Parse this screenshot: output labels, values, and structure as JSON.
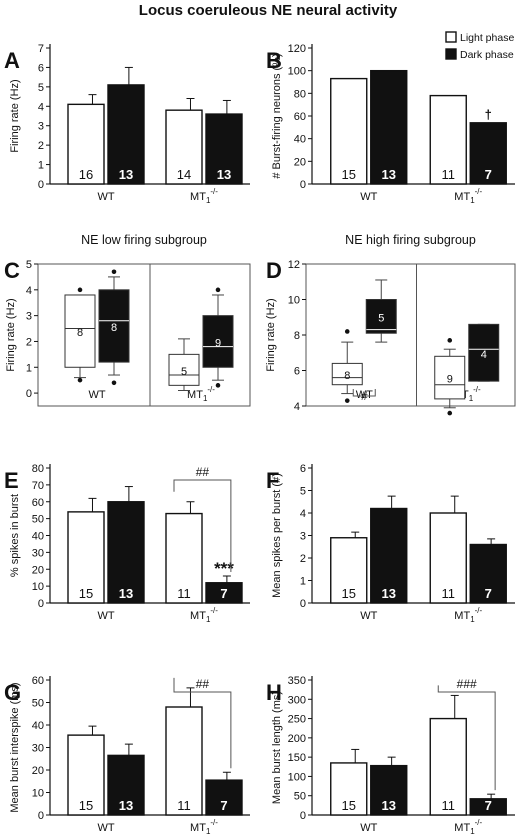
{
  "title": "Locus coeruleous NE neural activity",
  "legend": {
    "items": [
      {
        "label": "Light phase",
        "fill": "#ffffff"
      },
      {
        "label": "Dark phase",
        "fill": "#111111"
      }
    ]
  },
  "colors": {
    "light": "#ffffff",
    "dark": "#111111",
    "stroke": "#111111"
  },
  "chart_data": [
    {
      "panel": "A",
      "type": "bar",
      "ylabel": "Firing rate (Hz)",
      "ylim": [
        0,
        7
      ],
      "yticks": [
        0,
        1,
        2,
        3,
        4,
        5,
        6,
        7
      ],
      "groups": [
        {
          "label": "WT",
          "sup": "",
          "bars": [
            {
              "phase": "light",
              "value": 4.1,
              "err": 0.5,
              "n": "16"
            },
            {
              "phase": "dark",
              "value": 5.1,
              "err": 0.9,
              "n": "13"
            }
          ]
        },
        {
          "label": "MT",
          "sup": "-/-",
          "bars": [
            {
              "phase": "light",
              "value": 3.8,
              "err": 0.6,
              "n": "14"
            },
            {
              "phase": "dark",
              "value": 3.6,
              "err": 0.7,
              "n": "13"
            }
          ]
        }
      ]
    },
    {
      "panel": "B",
      "type": "bar",
      "ylabel": "# Burst-firing neurons (%)",
      "ylim": [
        0,
        120
      ],
      "yticks": [
        0,
        20,
        40,
        60,
        80,
        100,
        120
      ],
      "groups": [
        {
          "label": "WT",
          "sup": "",
          "bars": [
            {
              "phase": "light",
              "value": 93,
              "err": 0,
              "n": "15"
            },
            {
              "phase": "dark",
              "value": 100,
              "err": 0,
              "n": "13"
            }
          ]
        },
        {
          "label": "MT",
          "sup": "-/-",
          "bars": [
            {
              "phase": "light",
              "value": 78,
              "err": 0,
              "n": "11"
            },
            {
              "phase": "dark",
              "value": 54,
              "err": 0,
              "n": "7",
              "mark": "†"
            }
          ]
        }
      ]
    },
    {
      "panel": "C",
      "type": "boxplot",
      "subtitle": "NE low firing subgroup",
      "ylabel": "Firing rate (Hz)",
      "ylim": [
        -0.5,
        5
      ],
      "yticks": [
        0,
        1,
        2,
        3,
        4,
        5
      ],
      "groups": [
        {
          "label": "WT",
          "sup": "",
          "boxes": [
            {
              "phase": "light",
              "q1": 1.0,
              "median": 2.5,
              "q3": 3.8,
              "wlo": 0.6,
              "whi": 3.8,
              "outliers": [
                4.0,
                0.5
              ],
              "n": "8"
            },
            {
              "phase": "dark",
              "q1": 1.2,
              "median": 2.8,
              "q3": 4.0,
              "wlo": 0.7,
              "whi": 4.5,
              "outliers": [
                4.7,
                0.4
              ],
              "n": "8"
            }
          ]
        },
        {
          "label": "MT",
          "sup": "-/-",
          "boxes": [
            {
              "phase": "light",
              "q1": 0.3,
              "median": 0.7,
              "q3": 1.5,
              "wlo": 0.1,
              "whi": 2.1,
              "outliers": [],
              "n": "5"
            },
            {
              "phase": "dark",
              "q1": 1.0,
              "median": 1.8,
              "q3": 3.0,
              "wlo": 0.5,
              "whi": 3.8,
              "outliers": [
                4.0,
                0.3
              ],
              "n": "9"
            }
          ]
        }
      ]
    },
    {
      "panel": "D",
      "type": "boxplot",
      "subtitle": "NE high firing subgroup",
      "ylabel": "Firing rate (Hz)",
      "ylim": [
        4,
        12
      ],
      "yticks": [
        4,
        6,
        8,
        10,
        12
      ],
      "sig": "#",
      "groups": [
        {
          "label": "WT",
          "sup": "",
          "boxes": [
            {
              "phase": "light",
              "q1": 5.2,
              "median": 5.6,
              "q3": 6.4,
              "wlo": 4.7,
              "whi": 7.6,
              "outliers": [
                8.2,
                4.3
              ],
              "n": "8"
            },
            {
              "phase": "dark",
              "q1": 8.1,
              "median": 8.3,
              "q3": 10.0,
              "wlo": 7.6,
              "whi": 11.1,
              "outliers": [],
              "n": "5"
            }
          ]
        },
        {
          "label": "MT",
          "sup": "-/-",
          "boxes": [
            {
              "phase": "light",
              "q1": 4.4,
              "median": 5.2,
              "q3": 6.8,
              "wlo": 3.9,
              "whi": 7.2,
              "outliers": [
                7.7,
                3.6
              ],
              "n": "9"
            },
            {
              "phase": "dark",
              "q1": 5.4,
              "median": 7.2,
              "q3": 8.6,
              "wlo": 5.4,
              "whi": 8.6,
              "outliers": [],
              "n": "4"
            }
          ]
        }
      ]
    },
    {
      "panel": "E",
      "type": "bar",
      "ylabel": "% spikes in burst",
      "ylim": [
        0,
        80
      ],
      "yticks": [
        0,
        10,
        20,
        30,
        40,
        50,
        60,
        70,
        80
      ],
      "bracket": "##",
      "groups": [
        {
          "label": "WT",
          "sup": "",
          "bars": [
            {
              "phase": "light",
              "value": 54,
              "err": 8,
              "n": "15"
            },
            {
              "phase": "dark",
              "value": 60,
              "err": 9,
              "n": "13"
            }
          ]
        },
        {
          "label": "MT",
          "sup": "-/-",
          "bars": [
            {
              "phase": "light",
              "value": 53,
              "err": 7,
              "n": "11"
            },
            {
              "phase": "dark",
              "value": 12,
              "err": 4,
              "n": "7",
              "mark": "***"
            }
          ]
        }
      ]
    },
    {
      "panel": "F",
      "type": "bar",
      "ylabel": "Mean spikes per burst (#)",
      "ylim": [
        0,
        6
      ],
      "yticks": [
        0,
        1,
        2,
        3,
        4,
        5,
        6
      ],
      "groups": [
        {
          "label": "WT",
          "sup": "",
          "bars": [
            {
              "phase": "light",
              "value": 2.9,
              "err": 0.25,
              "n": "15"
            },
            {
              "phase": "dark",
              "value": 4.2,
              "err": 0.55,
              "n": "13"
            }
          ]
        },
        {
          "label": "MT",
          "sup": "-/-",
          "bars": [
            {
              "phase": "light",
              "value": 4.0,
              "err": 0.75,
              "n": "11"
            },
            {
              "phase": "dark",
              "value": 2.6,
              "err": 0.25,
              "n": "7"
            }
          ]
        }
      ]
    },
    {
      "panel": "G",
      "type": "bar",
      "ylabel": "Mean burst interspike (ms)",
      "ylim": [
        0,
        60
      ],
      "yticks": [
        0,
        10,
        20,
        30,
        40,
        50,
        60
      ],
      "bracket": "##",
      "groups": [
        {
          "label": "WT",
          "sup": "",
          "bars": [
            {
              "phase": "light",
              "value": 35.5,
              "err": 4,
              "n": "15"
            },
            {
              "phase": "dark",
              "value": 26.5,
              "err": 5,
              "n": "13"
            }
          ]
        },
        {
          "label": "MT",
          "sup": "-/-",
          "bars": [
            {
              "phase": "light",
              "value": 48,
              "err": 8.5,
              "n": "11"
            },
            {
              "phase": "dark",
              "value": 15.5,
              "err": 3.5,
              "n": "7"
            }
          ]
        }
      ]
    },
    {
      "panel": "H",
      "type": "bar",
      "ylabel": "Mean burst length (ms)",
      "ylim": [
        0,
        350
      ],
      "yticks": [
        0,
        50,
        100,
        150,
        200,
        250,
        300,
        350
      ],
      "bracket": "###",
      "groups": [
        {
          "label": "WT",
          "sup": "",
          "bars": [
            {
              "phase": "light",
              "value": 135,
              "err": 35,
              "n": "15"
            },
            {
              "phase": "dark",
              "value": 128,
              "err": 22,
              "n": "13"
            }
          ]
        },
        {
          "label": "MT",
          "sup": "-/-",
          "bars": [
            {
              "phase": "light",
              "value": 250,
              "err": 60,
              "n": "11"
            },
            {
              "phase": "dark",
              "value": 42,
              "err": 12,
              "n": "7"
            }
          ]
        }
      ]
    }
  ]
}
